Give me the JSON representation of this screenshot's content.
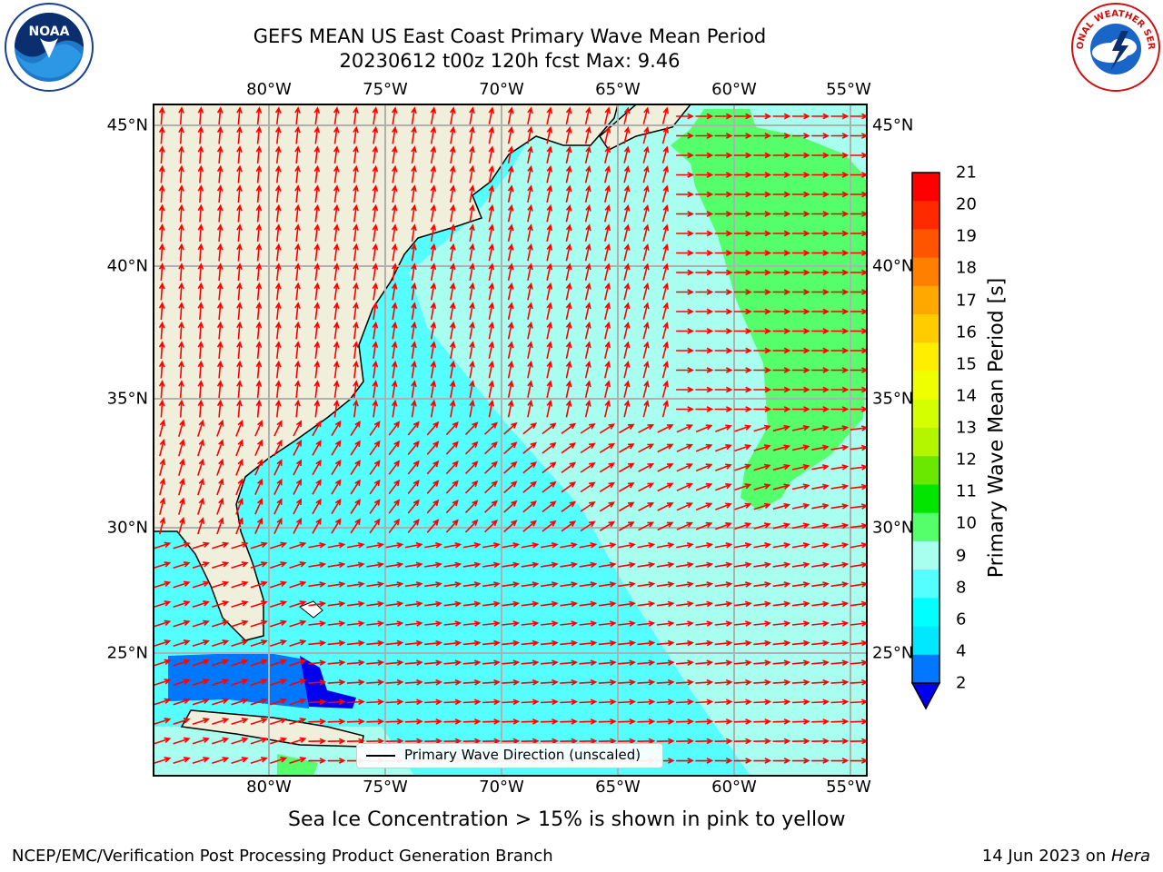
{
  "title": {
    "line1": "GEFS MEAN US East Coast Primary Wave Mean Period",
    "line2": "20230612 t00z 120h fcst   Max: 9.46"
  },
  "logos": {
    "left": {
      "icon": "noaa-logo",
      "text": "NOAA"
    },
    "right": {
      "icon": "nws-logo",
      "text": "NATIONAL WEATHER SERVICE"
    }
  },
  "map": {
    "lon_ticks": [
      "80°W",
      "75°W",
      "70°W",
      "65°W",
      "60°W",
      "55°W"
    ],
    "lat_ticks": [
      "45°N",
      "40°N",
      "35°N",
      "30°N",
      "25°N"
    ],
    "land_color": "#efefdc",
    "arrow_color": "#ff0000",
    "legend_label": "Primary Wave Direction (unscaled)"
  },
  "colorbar": {
    "label": "Primary Wave Mean Period [s]",
    "ticks": [
      "21",
      "20",
      "19",
      "18",
      "17",
      "16",
      "15",
      "14",
      "13",
      "12",
      "11",
      "10",
      "9",
      "8",
      "6",
      "4",
      "2"
    ],
    "colors": [
      "#ff0000",
      "#ff2a00",
      "#ff5500",
      "#ff8000",
      "#ffa800",
      "#ffcc00",
      "#ffee00",
      "#f0ff00",
      "#d4ff00",
      "#b4f500",
      "#6ae800",
      "#00e600",
      "#55ff6b",
      "#a8fff0",
      "#55ffff",
      "#00ffff",
      "#00e8ff",
      "#0077ff",
      "#0000ee"
    ]
  },
  "notes": {
    "ice": "Sea Ice Concentration > 15% is shown in pink to yellow",
    "footer_left": "NCEP/EMC/Verification Post Processing Product Generation Branch",
    "footer_date": "14 Jun 2023 on ",
    "footer_host": "Hera"
  }
}
